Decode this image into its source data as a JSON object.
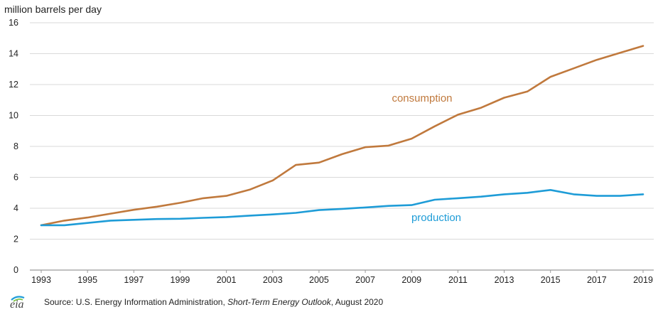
{
  "chart_data": {
    "type": "line",
    "title": "",
    "ylabel": "million barrels per day",
    "xlabel": "",
    "ylim": [
      0,
      16
    ],
    "yticks": [
      "0",
      "2",
      "4",
      "6",
      "8",
      "10",
      "12",
      "14",
      "16"
    ],
    "xlim": [
      1993,
      2019
    ],
    "xticks": [
      "1993",
      "1995",
      "1997",
      "1999",
      "2001",
      "2003",
      "2005",
      "2007",
      "2009",
      "2011",
      "2013",
      "2015",
      "2017",
      "2019"
    ],
    "grid": true,
    "x": [
      1993,
      1994,
      1995,
      1996,
      1997,
      1998,
      1999,
      2000,
      2001,
      2002,
      2003,
      2004,
      2005,
      2006,
      2007,
      2008,
      2009,
      2010,
      2011,
      2012,
      2013,
      2014,
      2015,
      2016,
      2017,
      2018,
      2019
    ],
    "series": [
      {
        "name": "consumption",
        "color": "#c0793d",
        "values": [
          2.9,
          3.2,
          3.4,
          3.65,
          3.9,
          4.1,
          4.35,
          4.65,
          4.8,
          5.2,
          5.8,
          6.8,
          6.95,
          7.5,
          7.95,
          8.05,
          8.5,
          9.3,
          10.05,
          10.5,
          11.15,
          11.55,
          12.5,
          13.05,
          13.6,
          14.05,
          14.5
        ]
      },
      {
        "name": "production",
        "color": "#1e9cd7",
        "values": [
          2.9,
          2.9,
          3.05,
          3.2,
          3.25,
          3.3,
          3.32,
          3.38,
          3.43,
          3.52,
          3.6,
          3.7,
          3.88,
          3.96,
          4.05,
          4.15,
          4.2,
          4.55,
          4.65,
          4.75,
          4.9,
          5.0,
          5.18,
          4.9,
          4.8,
          4.8,
          4.9
        ]
      }
    ]
  },
  "source": {
    "logo_text": "eia",
    "prefix": "Source: U.S. Energy Information Administration, ",
    "publication": "Short-Term Energy Outlook",
    "suffix": ", August 2020"
  }
}
